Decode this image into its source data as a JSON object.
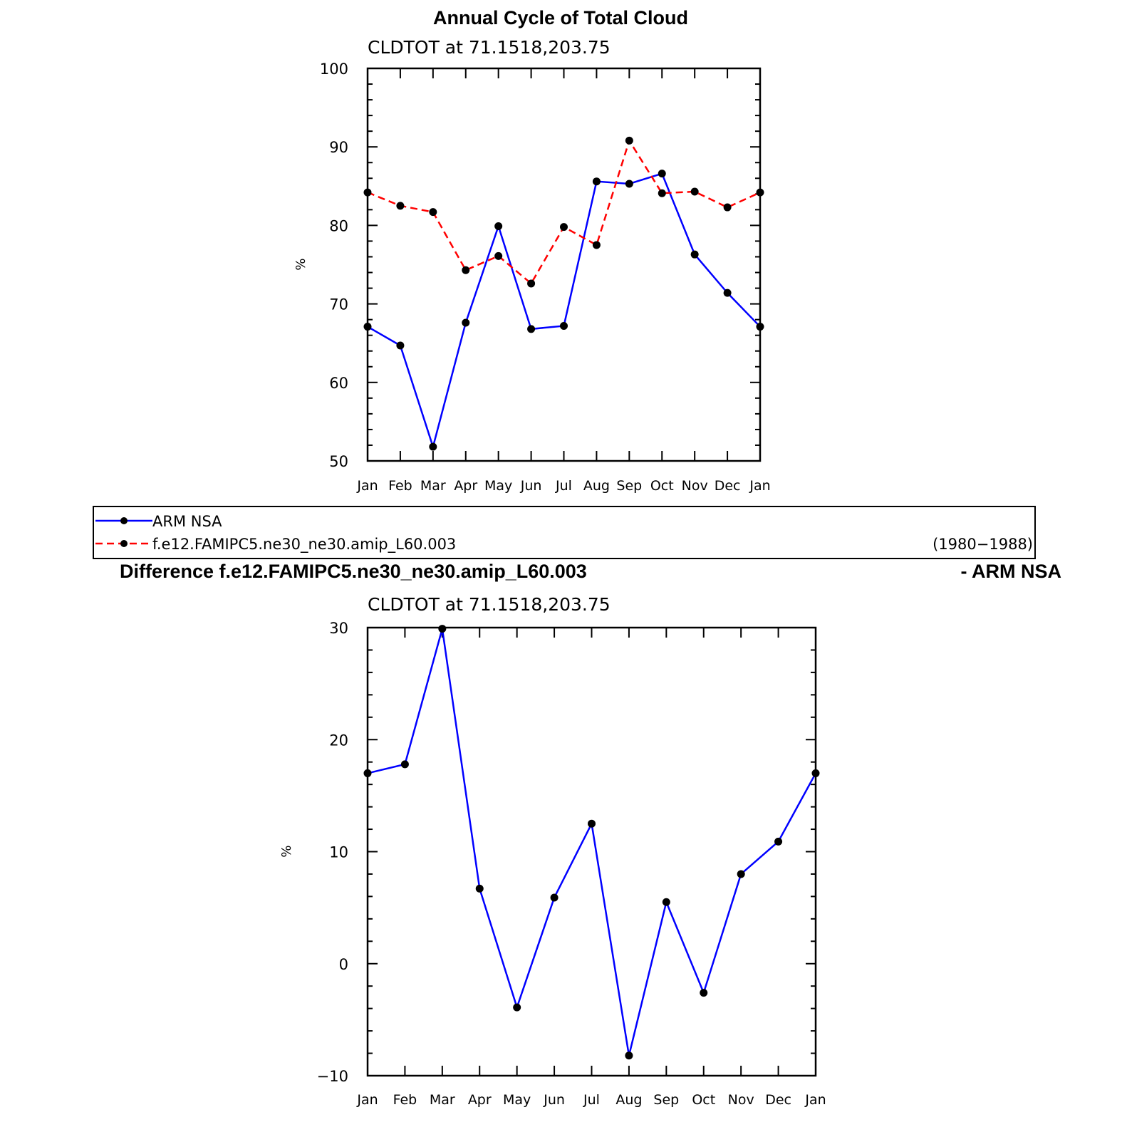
{
  "chart_data": [
    {
      "type": "line",
      "title": "Annual Cycle of Total Cloud",
      "subtitle": "CLDTOT at 71.1518,203.75",
      "ylabel": "%",
      "ylim": [
        50,
        100
      ],
      "yticks": [
        "100",
        "90",
        "80",
        "70",
        "60",
        "50"
      ],
      "categories": [
        "Jan",
        "Feb",
        "Mar",
        "Apr",
        "May",
        "Jun",
        "Jul",
        "Aug",
        "Sep",
        "Oct",
        "Nov",
        "Dec",
        "Jan"
      ],
      "series": [
        {
          "name": "ARM NSA",
          "color": "#0000ff",
          "dash": "solid",
          "values": [
            67.1,
            64.7,
            51.8,
            67.6,
            79.9,
            66.8,
            67.2,
            85.6,
            85.3,
            86.6,
            76.3,
            71.4,
            67.1
          ]
        },
        {
          "name": "f.e12.FAMIPC5.ne30_ne30.amip_L60.003",
          "color": "#ff0000",
          "dash": "dashed",
          "values": [
            84.2,
            82.5,
            81.7,
            74.3,
            76.1,
            72.6,
            79.8,
            77.5,
            90.8,
            84.1,
            84.3,
            82.3,
            84.2
          ]
        }
      ],
      "legend": {
        "position": "bottom",
        "period": "(1980−1988)"
      }
    },
    {
      "type": "line",
      "title_left": "Difference f.e12.FAMIPC5.ne30_ne30.amip_L60.003",
      "title_right": "- ARM NSA",
      "subtitle": "CLDTOT at 71.1518,203.75",
      "ylabel": "%",
      "ylim": [
        -10,
        30
      ],
      "yticks": [
        "30",
        "20",
        "10",
        "0",
        "−10"
      ],
      "categories": [
        "Jan",
        "Feb",
        "Mar",
        "Apr",
        "May",
        "Jun",
        "Jul",
        "Aug",
        "Sep",
        "Oct",
        "Nov",
        "Dec",
        "Jan"
      ],
      "series": [
        {
          "color": "#0000ff",
          "dash": "solid",
          "values": [
            17.0,
            17.8,
            29.9,
            6.7,
            -3.9,
            5.9,
            12.5,
            -8.2,
            5.5,
            -2.6,
            8.0,
            10.9,
            17.0
          ]
        }
      ]
    }
  ]
}
